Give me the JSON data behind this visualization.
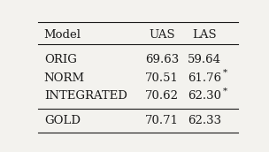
{
  "headers": [
    "Model",
    "UAS",
    "LAS"
  ],
  "rows": [
    [
      "ORIG",
      "69.63",
      "59.64"
    ],
    [
      "NORM",
      "70.51",
      "61.76*"
    ],
    [
      "INTEGRATED",
      "70.62",
      "62.30*"
    ],
    [
      "GOLD",
      "70.71",
      "62.33"
    ]
  ],
  "background_color": "#f3f2ee",
  "text_color": "#1a1a1a",
  "font_size": 9.5,
  "header_font_size": 9.5
}
